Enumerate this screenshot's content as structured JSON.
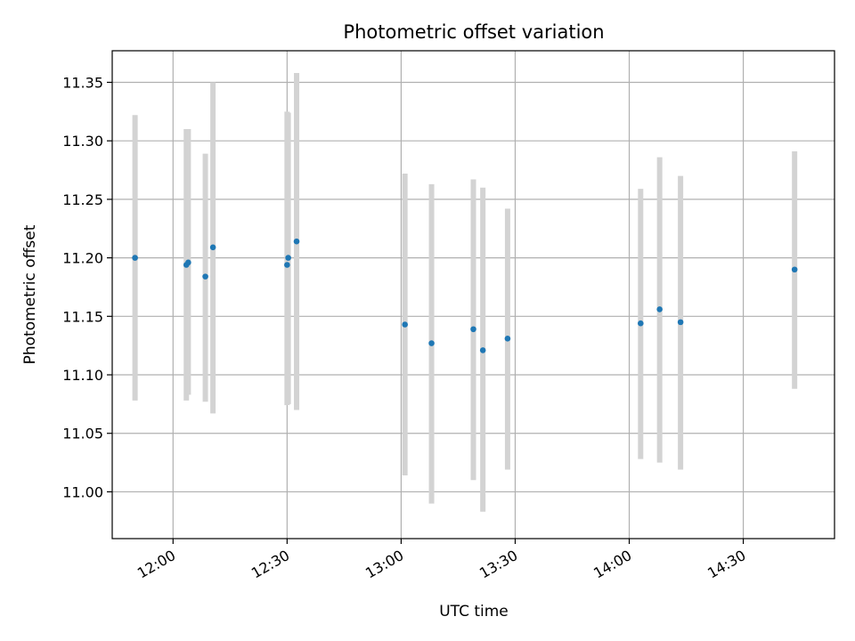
{
  "chart_data": {
    "type": "scatter",
    "title": "Photometric offset variation",
    "xlabel": "UTC time",
    "ylabel": "Photometric offset",
    "x_unit": "UTC time (HH:MM)",
    "xlim": [
      "11:44",
      "14:54"
    ],
    "ylim": [
      10.96,
      11.377
    ],
    "grid": true,
    "x_ticks": [
      "12:00",
      "12:30",
      "13:00",
      "13:30",
      "14:00",
      "14:30"
    ],
    "y_ticks": [
      "11.00",
      "11.05",
      "11.10",
      "11.15",
      "11.20",
      "11.25",
      "11.30",
      "11.35"
    ],
    "point_color": "#1f77b4",
    "errorbar_color": "#d3d3d3",
    "points": [
      {
        "x": "11:50",
        "y": 11.2,
        "yerr_low": 11.078,
        "yerr_high": 11.322
      },
      {
        "x": "12:03.5",
        "y": 11.194,
        "yerr_low": 11.078,
        "yerr_high": 11.31
      },
      {
        "x": "12:04",
        "y": 11.196,
        "yerr_low": 11.083,
        "yerr_high": 11.31
      },
      {
        "x": "12:08.5",
        "y": 11.184,
        "yerr_low": 11.077,
        "yerr_high": 11.289
      },
      {
        "x": "12:10.5",
        "y": 11.209,
        "yerr_low": 11.067,
        "yerr_high": 11.35
      },
      {
        "x": "12:30",
        "y": 11.194,
        "yerr_low": 11.074,
        "yerr_high": 11.325
      },
      {
        "x": "12:30.3",
        "y": 11.2,
        "yerr_low": 11.075,
        "yerr_high": 11.324
      },
      {
        "x": "12:32.5",
        "y": 11.214,
        "yerr_low": 11.07,
        "yerr_high": 11.358
      },
      {
        "x": "13:01",
        "y": 11.143,
        "yerr_low": 11.014,
        "yerr_high": 11.272
      },
      {
        "x": "13:08",
        "y": 11.127,
        "yerr_low": 10.99,
        "yerr_high": 11.263
      },
      {
        "x": "13:19",
        "y": 11.139,
        "yerr_low": 11.01,
        "yerr_high": 11.267
      },
      {
        "x": "13:21.5",
        "y": 11.121,
        "yerr_low": 10.983,
        "yerr_high": 11.26
      },
      {
        "x": "13:28",
        "y": 11.131,
        "yerr_low": 11.019,
        "yerr_high": 11.242
      },
      {
        "x": "14:03",
        "y": 11.144,
        "yerr_low": 11.028,
        "yerr_high": 11.259
      },
      {
        "x": "14:08",
        "y": 11.156,
        "yerr_low": 11.025,
        "yerr_high": 11.286
      },
      {
        "x": "14:13.5",
        "y": 11.145,
        "yerr_low": 11.019,
        "yerr_high": 11.27
      },
      {
        "x": "14:43.5",
        "y": 11.19,
        "yerr_low": 11.088,
        "yerr_high": 11.291
      }
    ]
  }
}
